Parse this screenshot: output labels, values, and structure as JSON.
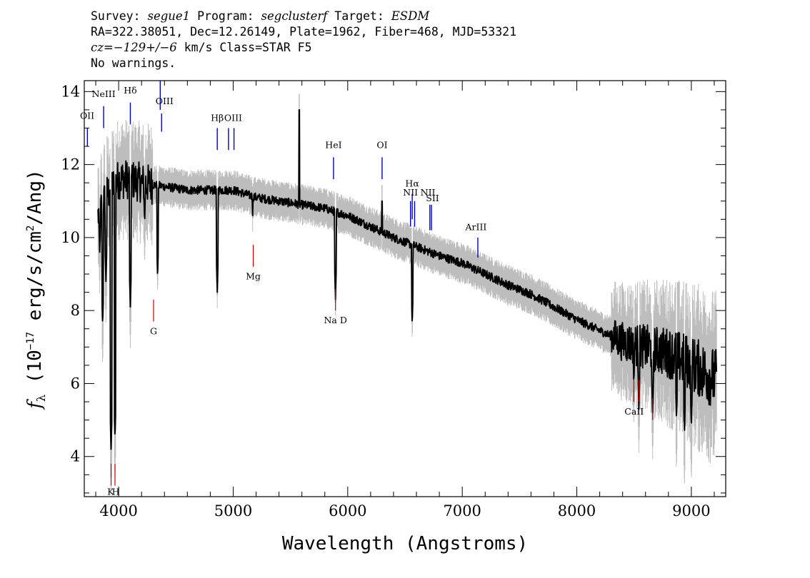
{
  "header": {
    "survey_label": "Survey:",
    "survey": "segue1",
    "program_label": "Program:",
    "program": "segclusterf",
    "target_label": "Target:",
    "target": "ESDM",
    "line2": "RA=322.38051, Dec=12.26149, Plate=1962, Fiber=468, MJD=53321",
    "cz_label": "cz=",
    "cz_value": "−129+/−6",
    "cz_rest": " km/s Class=STAR F5",
    "line4": "No warnings."
  },
  "chart_data": {
    "type": "line",
    "xlabel": "Wavelength (Angstroms)",
    "ylabel_parts": {
      "f": "f",
      "sub": "λ",
      "unit1": " (10",
      "exp1": "−17",
      "unit2": " erg/s/cm",
      "exp2": "2",
      "unit3": "/Ang)"
    },
    "xlim": [
      3700,
      9300
    ],
    "ylim": [
      2.9,
      14.3
    ],
    "x_ticks": [
      4000,
      5000,
      6000,
      7000,
      8000,
      9000
    ],
    "y_ticks": [
      4,
      6,
      8,
      10,
      12,
      14
    ],
    "colors": {
      "spectrum": "#000000",
      "error_band": "#bdbdbd",
      "emission": "#0000cc",
      "absorption": "#cc0000"
    },
    "spectrum_x_range": [
      3820,
      9220
    ],
    "continuum": [
      [
        3820,
        10.6
      ],
      [
        3900,
        11.2
      ],
      [
        4000,
        11.6
      ],
      [
        4100,
        11.6
      ],
      [
        4200,
        11.5
      ],
      [
        4400,
        11.4
      ],
      [
        4600,
        11.3
      ],
      [
        4800,
        11.3
      ],
      [
        5000,
        11.3
      ],
      [
        5200,
        11.1
      ],
      [
        5400,
        11.0
      ],
      [
        5600,
        10.9
      ],
      [
        5800,
        10.8
      ],
      [
        6000,
        10.6
      ],
      [
        6200,
        10.3
      ],
      [
        6400,
        10.0
      ],
      [
        6600,
        9.75
      ],
      [
        6800,
        9.5
      ],
      [
        7000,
        9.3
      ],
      [
        7200,
        9.0
      ],
      [
        7400,
        8.7
      ],
      [
        7600,
        8.45
      ],
      [
        7800,
        8.1
      ],
      [
        8000,
        7.75
      ],
      [
        8200,
        7.45
      ],
      [
        8400,
        7.15
      ],
      [
        8600,
        7.0
      ],
      [
        8800,
        6.85
      ],
      [
        9000,
        6.55
      ],
      [
        9220,
        6.1
      ]
    ],
    "absorption_features": [
      [
        3835,
        9.6
      ],
      [
        3860,
        7.6
      ],
      [
        3889,
        8.8
      ],
      [
        3934,
        4.2
      ],
      [
        3968,
        4.5
      ],
      [
        4102,
        8.1
      ],
      [
        4227,
        10.4
      ],
      [
        4340,
        8.9
      ],
      [
        4861,
        8.5
      ],
      [
        5170,
        10.6
      ],
      [
        5893,
        8.3
      ],
      [
        6563,
        7.6
      ],
      [
        8498,
        6.0
      ],
      [
        8542,
        5.3
      ],
      [
        8662,
        5.2
      ],
      [
        8870,
        5.0
      ],
      [
        8940,
        4.6
      ],
      [
        9000,
        4.8
      ]
    ],
    "emission_features": [
      [
        5577,
        13.5
      ],
      [
        6300,
        11.0
      ]
    ],
    "emission_lines": [
      {
        "label": "OII",
        "x": 3727,
        "y_top": 13.0,
        "y_bot": 12.5,
        "lx": 3725,
        "ly": 13.25
      },
      {
        "label": "NeIII",
        "x": 3869,
        "y_top": 13.6,
        "y_bot": 13.0,
        "lx": 3869,
        "ly": 13.85
      },
      {
        "label": "Hδ",
        "x": 4102,
        "y_top": 13.7,
        "y_bot": 13.1,
        "lx": 4102,
        "ly": 13.95
      },
      {
        "label": "OIII",
        "x": 4363,
        "y_top": 14.3,
        "y_bot": 13.5,
        "lx": 4400,
        "ly": 13.65
      },
      {
        "label": "OIII",
        "x": 4375,
        "y_top": 13.4,
        "y_bot": 12.9,
        "lx": 4400,
        "ly": 13.65
      },
      {
        "label": "Hβ",
        "x": 4861,
        "y_top": 13.0,
        "y_bot": 12.4,
        "lx": 4861,
        "ly": 13.2
      },
      {
        "label": "OIII",
        "x": 4959,
        "y_top": 13.0,
        "y_bot": 12.4,
        "lx": 5000,
        "ly": 13.2
      },
      {
        "label": "OIII",
        "x": 5007,
        "y_top": 13.0,
        "y_bot": 12.4,
        "lx": 5000,
        "ly": 13.2
      },
      {
        "label": "HeI",
        "x": 5876,
        "y_top": 12.2,
        "y_bot": 11.6,
        "lx": 5876,
        "ly": 12.45
      },
      {
        "label": "OI",
        "x": 6300,
        "y_top": 12.2,
        "y_bot": 11.6,
        "lx": 6300,
        "ly": 12.45
      },
      {
        "label": "NII",
        "x": 6548,
        "y_top": 11.0,
        "y_bot": 10.3,
        "lx": 6548,
        "ly": 11.15
      },
      {
        "label": "Hα",
        "x": 6563,
        "y_top": 11.2,
        "y_bot": 10.5,
        "lx": 6563,
        "ly": 11.4
      },
      {
        "label": "NII",
        "x": 6584,
        "y_top": 11.0,
        "y_bot": 10.3,
        "lx": 6700,
        "ly": 11.15
      },
      {
        "label": "SII",
        "x": 6717,
        "y_top": 10.9,
        "y_bot": 10.2,
        "lx": 6740,
        "ly": 11.0
      },
      {
        "label": "SII",
        "x": 6731,
        "y_top": 10.9,
        "y_bot": 10.2,
        "lx": 6740,
        "ly": 11.0
      },
      {
        "label": "ArIII",
        "x": 7136,
        "y_top": 10.0,
        "y_bot": 9.45,
        "lx": 7120,
        "ly": 10.2
      }
    ],
    "absorption_lines": [
      {
        "label": "K",
        "x": 3934,
        "y_top": 3.8,
        "y_bot": 3.2,
        "lx": 3930,
        "ly": 2.95
      },
      {
        "label": "H",
        "x": 3968,
        "y_top": 3.8,
        "y_bot": 3.2,
        "lx": 3975,
        "ly": 2.95
      },
      {
        "label": "G",
        "x": 4305,
        "y_top": 8.3,
        "y_bot": 7.7,
        "lx": 4305,
        "ly": 7.35
      },
      {
        "label": "Mg",
        "x": 5175,
        "y_top": 9.8,
        "y_bot": 9.2,
        "lx": 5175,
        "ly": 8.85
      },
      {
        "label": "Na D",
        "x": 5893,
        "y_top": 8.6,
        "y_bot": 8.0,
        "lx": 5893,
        "ly": 7.65
      },
      {
        "label": "CaII",
        "x": 8498,
        "y_top": 6.1,
        "y_bot": 5.5,
        "lx": 8500,
        "ly": 5.15
      },
      {
        "label": "",
        "x": 8542,
        "y_top": 6.1,
        "y_bot": 5.5,
        "lx": 8542,
        "ly": 5.15
      },
      {
        "label": "",
        "x": 8662,
        "y_top": 5.6,
        "y_bot": 5.0,
        "lx": 8662,
        "ly": 4.65
      }
    ]
  }
}
